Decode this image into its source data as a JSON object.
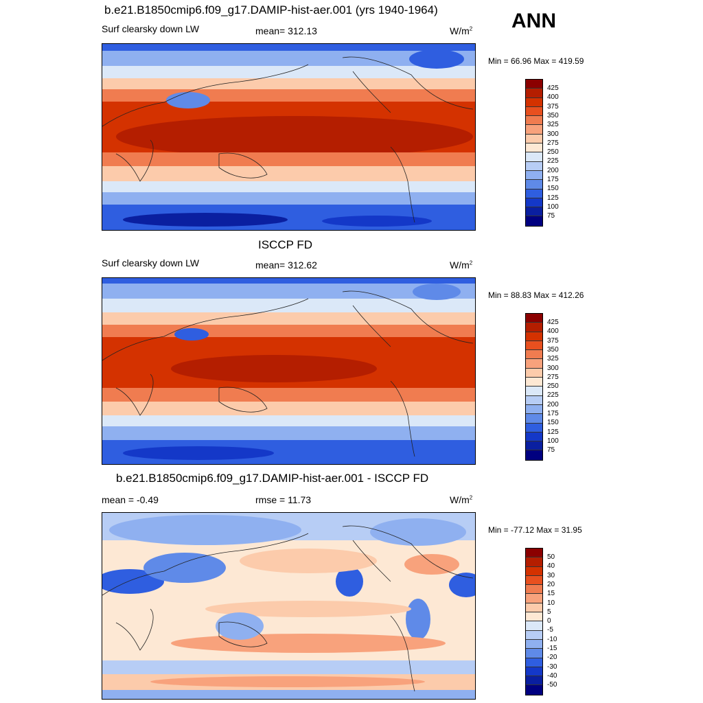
{
  "season": "ANN",
  "panels": [
    {
      "title": "b.e21.B1850cmip6.f09_g17.DAMIP-hist-aer.001 (yrs 1940-1964)",
      "left_label": "Surf clearsky down LW",
      "center_label": "mean= 312.13",
      "unit": "W/m",
      "unit_exp": "2",
      "minmax": "Min =  66.96 Max = 419.59",
      "colorbar_ticks": [
        "425",
        "400",
        "375",
        "350",
        "325",
        "300",
        "275",
        "250",
        "225",
        "200",
        "175",
        "150",
        "125",
        "100",
        "75"
      ]
    },
    {
      "title": "ISCCP FD",
      "left_label": "Surf clearsky down LW",
      "center_label": "mean= 312.62",
      "unit": "W/m",
      "unit_exp": "2",
      "minmax": "Min =  88.83 Max = 412.26",
      "colorbar_ticks": [
        "425",
        "400",
        "375",
        "350",
        "325",
        "300",
        "275",
        "250",
        "225",
        "200",
        "175",
        "150",
        "125",
        "100",
        "75"
      ]
    },
    {
      "title": "b.e21.B1850cmip6.f09_g17.DAMIP-hist-aer.001 - ISCCP FD",
      "left_label": "mean =  -0.49",
      "center_label": "rmse =  11.73",
      "unit": "W/m",
      "unit_exp": "2",
      "minmax": "Min = -77.12 Max =  31.95",
      "colorbar_ticks": [
        "50",
        "40",
        "30",
        "20",
        "15",
        "10",
        "5",
        "0",
        "-5",
        "-10",
        "-15",
        "-20",
        "-30",
        "-40",
        "-50"
      ]
    }
  ],
  "colors": {
    "palette": [
      "#8b0000",
      "#b41e00",
      "#d43200",
      "#e8501f",
      "#f07c50",
      "#f8a27c",
      "#fccbab",
      "#fde8d4",
      "#dbe8f8",
      "#b7cdf5",
      "#8fb0f0",
      "#5f8ae8",
      "#2f5ee0",
      "#1438c8",
      "#0a1fa0",
      "#000080"
    ]
  }
}
